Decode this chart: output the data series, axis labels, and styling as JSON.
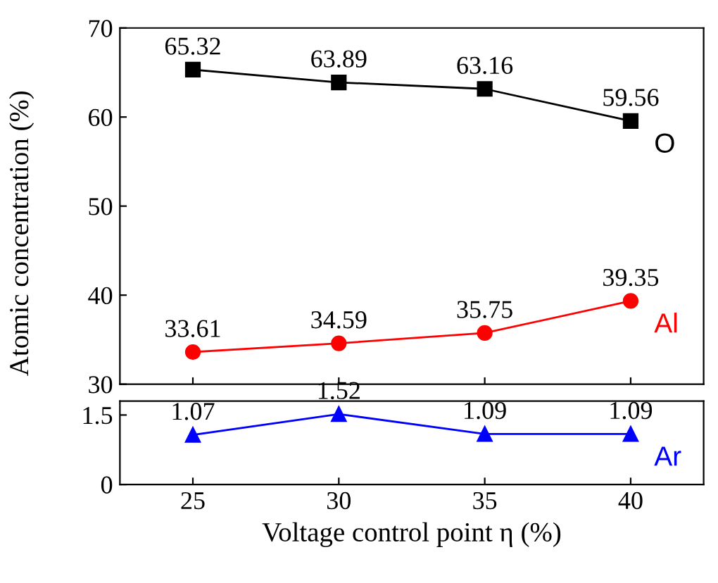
{
  "chart_data": [
    {
      "type": "line",
      "ylabel": "Atomic concentration (%)",
      "x": [
        25,
        30,
        35,
        40
      ],
      "xlim": [
        22.5,
        42.5
      ],
      "xticks": [
        25,
        30,
        35,
        40
      ],
      "ylim": [
        30,
        70
      ],
      "yticks": [
        30,
        40,
        50,
        60,
        70
      ],
      "tick_labels": "y",
      "data_labels": true,
      "grid": false,
      "legend": false,
      "line_style": "solid",
      "series": [
        {
          "name": "O",
          "color": "#000000",
          "marker": "square",
          "values": [
            65.32,
            63.89,
            63.16,
            59.56
          ]
        },
        {
          "name": "Al",
          "color": "#ff0000",
          "marker": "circle",
          "values": [
            33.61,
            34.59,
            35.75,
            39.35
          ]
        }
      ]
    },
    {
      "type": "line",
      "xlabel": "Voltage control point η (%)",
      "x": [
        25,
        30,
        35,
        40
      ],
      "xlim": [
        22.5,
        42.5
      ],
      "xticks": [
        25,
        30,
        35,
        40
      ],
      "ylim": [
        0,
        1.8
      ],
      "yticks": [
        0,
        1.5
      ],
      "data_labels": true,
      "grid": false,
      "legend": false,
      "line_style": "solid",
      "series": [
        {
          "name": "Ar",
          "color": "#0000ff",
          "marker": "triangle",
          "values": [
            1.07,
            1.52,
            1.09,
            1.09
          ]
        }
      ]
    }
  ]
}
